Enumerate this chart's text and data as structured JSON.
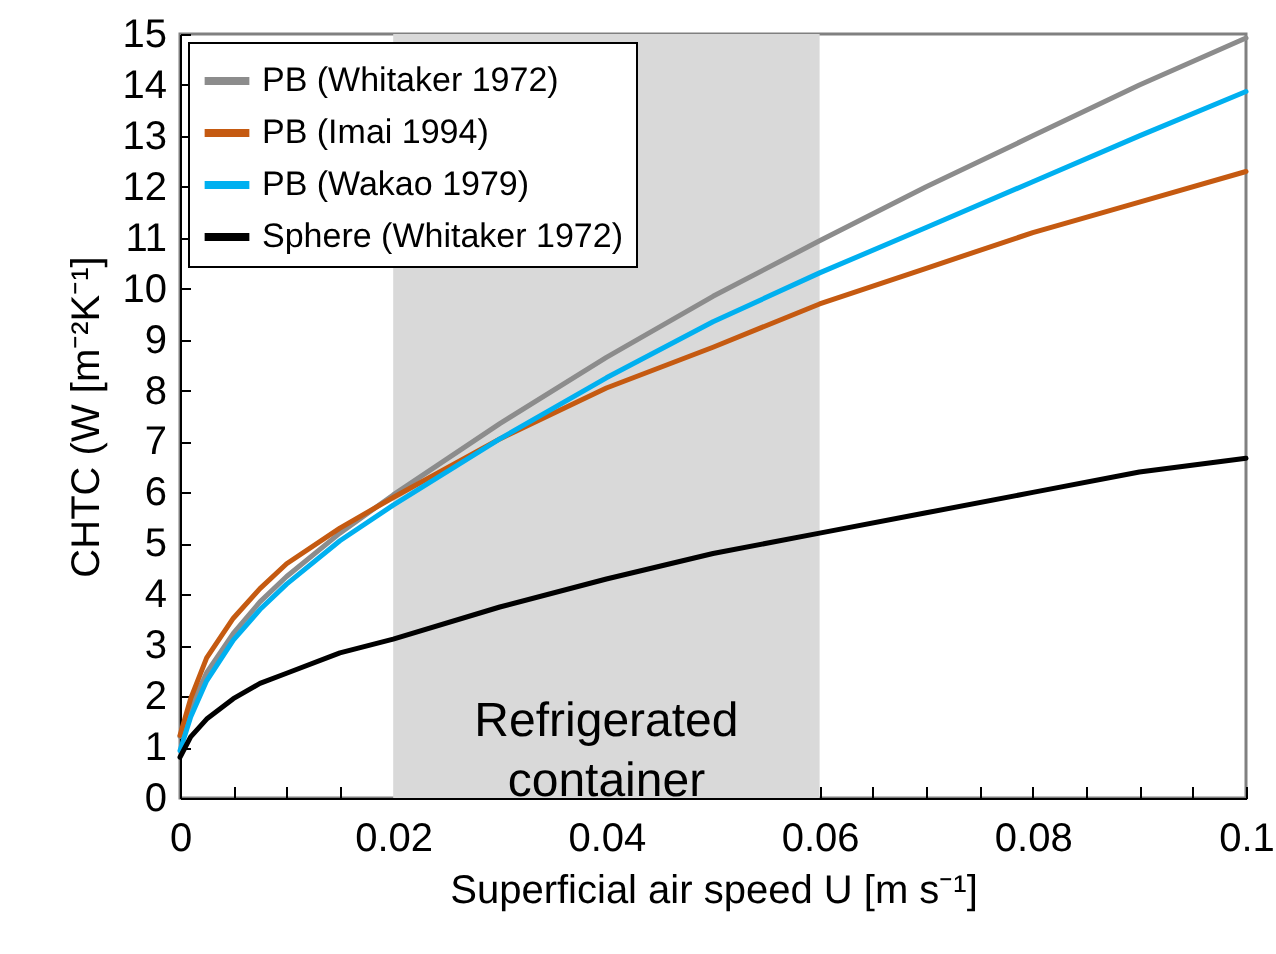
{
  "chart_data": {
    "type": "line",
    "xlabel": "Superficial air speed U [m s⁻¹]",
    "ylabel": "CHTC (W [m⁻²K⁻¹]",
    "x": [
      0,
      0.001,
      0.0025,
      0.005,
      0.0075,
      0.01,
      0.015,
      0.02,
      0.03,
      0.04,
      0.05,
      0.06,
      0.07,
      0.08,
      0.09,
      0.1
    ],
    "series": [
      {
        "name": "PB (Whitaker 1972)",
        "color": "#8c8c8c",
        "values": [
          1.21,
          1.78,
          2.46,
          3.23,
          3.85,
          4.35,
          5.2,
          5.95,
          7.35,
          8.65,
          9.85,
          10.94,
          12.0,
          13.0,
          14.0,
          14.92
        ]
      },
      {
        "name": "PB (Imai 1994)",
        "color": "#c55a11",
        "values": [
          1.23,
          1.95,
          2.75,
          3.53,
          4.11,
          4.6,
          5.3,
          5.9,
          7.05,
          8.05,
          8.85,
          9.7,
          10.4,
          11.1,
          11.7,
          12.3
        ]
      },
      {
        "name": "PB (Wakao 1979)",
        "color": "#00b0f0",
        "values": [
          0.93,
          1.59,
          2.3,
          3.1,
          3.7,
          4.2,
          5.05,
          5.75,
          7.05,
          8.25,
          9.35,
          10.31,
          11.2,
          12.1,
          13.0,
          13.87
        ]
      },
      {
        "name": "Sphere (Whitaker 1972)",
        "color": "#000000",
        "values": [
          0.8,
          1.2,
          1.55,
          1.95,
          2.25,
          2.45,
          2.85,
          3.12,
          3.75,
          4.3,
          4.8,
          5.2,
          5.6,
          6.0,
          6.4,
          6.67
        ]
      }
    ],
    "xlim": [
      0,
      0.1
    ],
    "xticks": [
      0,
      {
        "value": 0.005,
        "label": null
      },
      {
        "value": 0.01,
        "label": null
      },
      {
        "value": 0.015,
        "label": null
      },
      0.02,
      {
        "value": 0.025,
        "label": null
      },
      {
        "value": 0.03,
        "label": null
      },
      {
        "value": 0.035,
        "label": null
      },
      0.04,
      {
        "value": 0.045,
        "label": null
      },
      {
        "value": 0.05,
        "label": null
      },
      {
        "value": 0.055,
        "label": null
      },
      0.06,
      {
        "value": 0.065,
        "label": null
      },
      {
        "value": 0.07,
        "label": null
      },
      {
        "value": 0.075,
        "label": null
      },
      0.08,
      {
        "value": 0.085,
        "label": null
      },
      {
        "value": 0.09,
        "label": null
      },
      {
        "value": 0.095,
        "label": null
      },
      0.1
    ],
    "ylim": [
      0,
      15
    ],
    "yticks": [
      0,
      1,
      2,
      3,
      4,
      5,
      6,
      7,
      8,
      9,
      10,
      11,
      12,
      13,
      14,
      15
    ],
    "bands": [
      {
        "axis": "x",
        "from": 0.02,
        "to": 0.06,
        "label": "Refrigerated container",
        "color": "#d9d9d9"
      }
    ],
    "legend": "top left",
    "grid": false,
    "marker": "none",
    "line_style": "solid"
  }
}
